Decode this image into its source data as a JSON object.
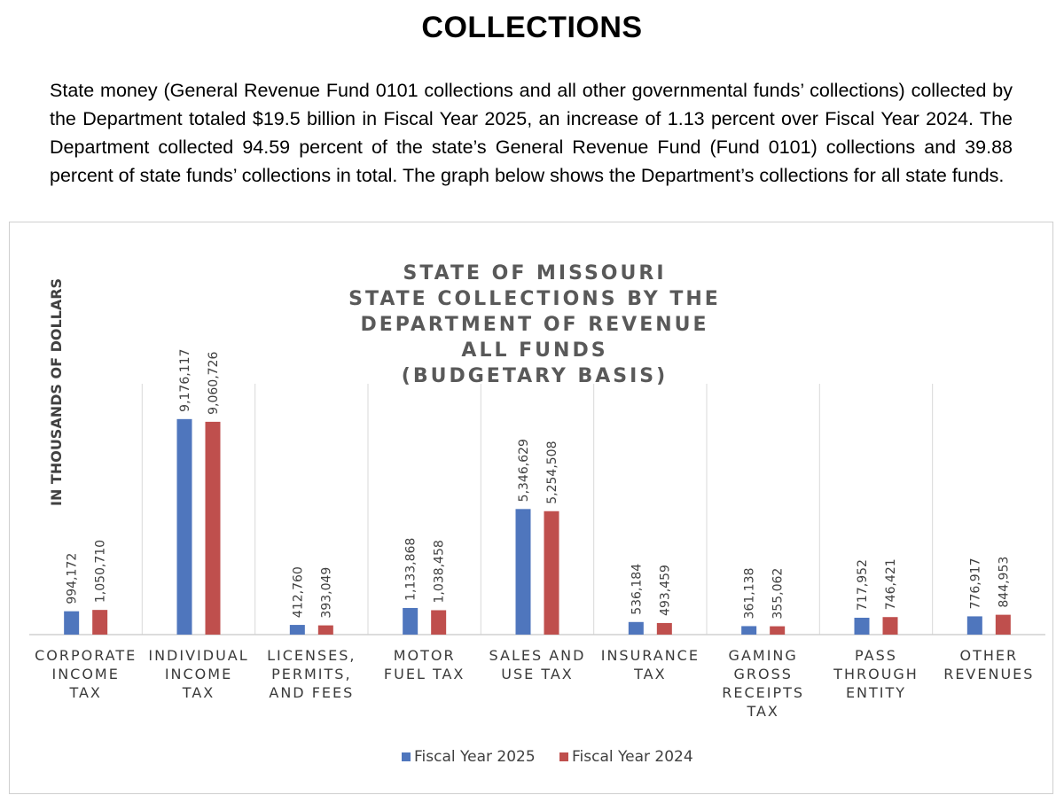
{
  "heading": "COLLECTIONS",
  "intro": "State money (General Revenue Fund 0101 collections and all other governmental funds’ collections) collected by the Department totaled $19.5 billion in Fiscal Year 2025, an increase of 1.13 percent over Fiscal Year 2024. The Department collected 94.59 percent of the state’s General Revenue Fund (Fund 0101) collections and 39.88 percent of state funds’ collections in total.  The graph below shows the Department’s collections for all state funds.",
  "colors": {
    "fy2025": "#4f76bd",
    "fy2024": "#bf4f4d"
  },
  "chart_data": {
    "type": "bar",
    "title_lines": [
      "STATE OF MISSOURI",
      "STATE COLLECTIONS BY THE",
      "DEPARTMENT OF REVENUE",
      "ALL FUNDS",
      "(BUDGETARY BASIS)"
    ],
    "ylabel": "IN THOUSANDS OF DOLLARS",
    "xlabel": "",
    "categories": [
      [
        "CORPORATE",
        "INCOME",
        "TAX"
      ],
      [
        "INDIVIDUAL",
        "INCOME",
        "TAX"
      ],
      [
        "LICENSES,",
        "PERMITS,",
        "AND FEES"
      ],
      [
        "MOTOR",
        "FUEL TAX"
      ],
      [
        "SALES AND",
        "USE TAX"
      ],
      [
        "INSURANCE",
        "TAX"
      ],
      [
        "GAMING",
        "GROSS",
        "RECEIPTS",
        "TAX"
      ],
      [
        "PASS",
        "THROUGH",
        "ENTITY"
      ],
      [
        "OTHER",
        "REVENUES"
      ]
    ],
    "series": [
      {
        "name": "Fiscal Year 2025",
        "values": [
          994172,
          9176117,
          412760,
          1133868,
          5346629,
          536184,
          361138,
          717952,
          776917
        ],
        "labels": [
          "994,172",
          "9,176,117",
          "412,760",
          "1,133,868",
          "5,346,629",
          "536,184",
          "361,138",
          "717,952",
          "776,917"
        ]
      },
      {
        "name": "Fiscal Year 2024",
        "values": [
          1050710,
          9060726,
          393049,
          1038458,
          5254508,
          493459,
          355062,
          746421,
          844953
        ],
        "labels": [
          "1,050,710",
          "9,060,726",
          "393,049",
          "1,038,458",
          "5,254,508",
          "493,459",
          "355,062",
          "746,421",
          "844,953"
        ]
      }
    ],
    "ylim": [
      0,
      10000000
    ],
    "grid": "vertical category separators",
    "legend": "bottom"
  }
}
